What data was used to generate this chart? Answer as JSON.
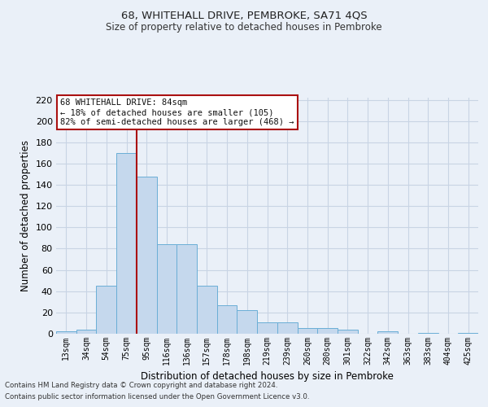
{
  "title1": "68, WHITEHALL DRIVE, PEMBROKE, SA71 4QS",
  "title2": "Size of property relative to detached houses in Pembroke",
  "xlabel": "Distribution of detached houses by size in Pembroke",
  "ylabel": "Number of detached properties",
  "footnote1": "Contains HM Land Registry data © Crown copyright and database right 2024.",
  "footnote2": "Contains public sector information licensed under the Open Government Licence v3.0.",
  "annotation_title": "68 WHITEHALL DRIVE: 84sqm",
  "annotation_line2": "← 18% of detached houses are smaller (105)",
  "annotation_line3": "82% of semi-detached houses are larger (468) →",
  "bar_categories": [
    "13sqm",
    "34sqm",
    "54sqm",
    "75sqm",
    "95sqm",
    "116sqm",
    "136sqm",
    "157sqm",
    "178sqm",
    "198sqm",
    "219sqm",
    "239sqm",
    "260sqm",
    "280sqm",
    "301sqm",
    "322sqm",
    "342sqm",
    "363sqm",
    "383sqm",
    "404sqm",
    "425sqm"
  ],
  "bar_values": [
    2,
    4,
    45,
    170,
    148,
    84,
    84,
    45,
    27,
    22,
    11,
    11,
    5,
    5,
    4,
    0,
    2,
    0,
    1,
    0,
    1
  ],
  "bar_color": "#c5d8ed",
  "bar_edge_color": "#6aaed6",
  "grid_color": "#c8d4e4",
  "vline_x": 3.5,
  "vline_color": "#aa1111",
  "ylim": [
    0,
    222
  ],
  "yticks": [
    0,
    20,
    40,
    60,
    80,
    100,
    120,
    140,
    160,
    180,
    200,
    220
  ],
  "annotation_box_facecolor": "#ffffff",
  "annotation_box_edgecolor": "#aa1111",
  "bg_color": "#eaf0f8"
}
